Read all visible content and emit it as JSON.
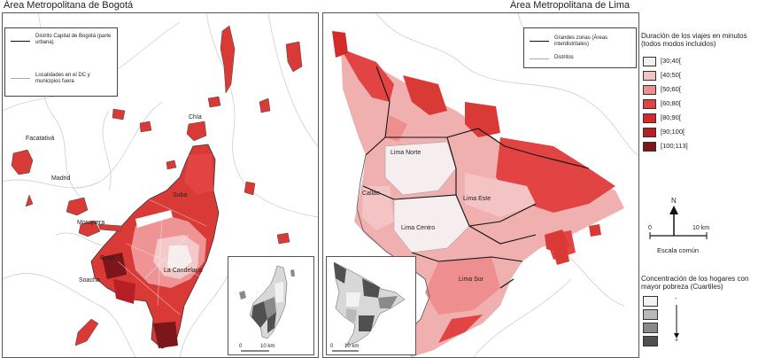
{
  "bogota": {
    "title": "Área Metropolitana de Bogotá",
    "legend": {
      "items": [
        {
          "label": "Distrito Capital de Bogotá (parte urbana)"
        },
        {
          "label": "Localidades en el DC y municipios fuera"
        }
      ]
    },
    "places": [
      "Chía",
      "Facatativá",
      "Madrid",
      "Mosquera",
      "Suba",
      "Bosa",
      "La Candelaria",
      "Soacha"
    ],
    "inset_scale": {
      "zero": "0",
      "dist": "10 km"
    }
  },
  "lima": {
    "title": "Área Metropolitana de Lima",
    "legend": {
      "items": [
        {
          "label": "Grandes zonas (Áreas interdistritales)"
        },
        {
          "label": "Distritos"
        }
      ]
    },
    "places": [
      "Lima Norte",
      "Callao",
      "Lima Este",
      "Lima Centro",
      "Lima Sur"
    ],
    "inset_scale": {
      "zero": "0",
      "dist": "10 km"
    }
  },
  "legend": {
    "duration_title": "Duración de los viajes en minutos (todos modos incluidos)",
    "classes": [
      {
        "label": "[30;40[",
        "color": "#f6eeee"
      },
      {
        "label": "[40;50[",
        "color": "#f4c4c4"
      },
      {
        "label": "[50;60[",
        "color": "#ee8e8e"
      },
      {
        "label": "[60;80[",
        "color": "#e24444"
      },
      {
        "label": "[80;90[",
        "color": "#d42a2a"
      },
      {
        "label": "[90;100[",
        "color": "#b51f25"
      },
      {
        "label": "[100;113]",
        "color": "#7d161a"
      }
    ],
    "north": "N",
    "scale": {
      "zero": "0",
      "dist": "10 km",
      "caption": "Escala común"
    },
    "poverty_title": "Concentración de los hogares con mayor pobreza (Cuartiles)",
    "quartiles": [
      {
        "color": "#f2f2f2"
      },
      {
        "color": "#b9b9b9"
      },
      {
        "color": "#8a8a8a"
      },
      {
        "color": "#505050"
      }
    ],
    "minus": "-",
    "plus": "+"
  }
}
